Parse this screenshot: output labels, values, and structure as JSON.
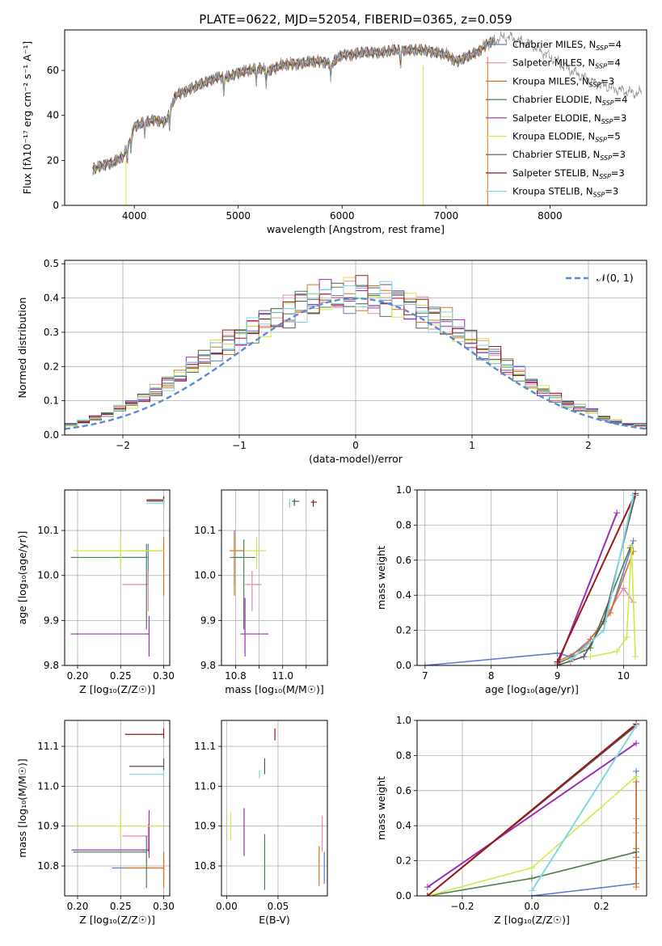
{
  "chart_data": [
    {
      "id": "spectrum",
      "type": "line",
      "title": "PLATE=0622, MJD=52054, FIBERID=0365, z=0.059",
      "xlabel": "wavelength [Angstrom, rest frame]",
      "ylabel": "Flux [fλ10⁻¹⁷ erg cm⁻² s⁻¹ A⁻¹]",
      "xlim": [
        3330,
        8930
      ],
      "ylim": [
        0,
        78
      ],
      "xticks": [
        4000,
        5000,
        6000,
        7000,
        8000
      ],
      "yticks": [
        0,
        20,
        40,
        60
      ],
      "grid": false,
      "legend_position": "right",
      "continuum": {
        "x": [
          3600,
          3700,
          3800,
          3900,
          4000,
          4100,
          4200,
          4300,
          4400,
          4500,
          4600,
          4700,
          4800,
          4900,
          5000,
          5100,
          5200,
          5300,
          5400,
          5500,
          5600,
          5700,
          5800,
          5900,
          6000,
          6100,
          6200,
          6300,
          6400,
          6500,
          6600,
          6700,
          6800,
          6900,
          7000,
          7100,
          7200,
          7300,
          7400,
          7500,
          7600,
          7700,
          7800,
          8000,
          8200,
          8400,
          8600,
          8800
        ],
        "y": [
          16,
          18,
          19,
          22,
          35,
          37,
          38,
          37,
          49,
          51,
          53,
          55,
          57,
          57,
          59,
          60,
          61,
          60,
          62,
          63,
          63,
          64,
          64,
          63,
          67,
          67,
          68,
          68,
          68,
          69,
          69,
          69,
          69,
          68,
          67,
          64,
          66,
          68,
          72,
          74,
          75,
          73,
          72,
          66,
          60,
          55,
          52,
          50
        ]
      },
      "series": [
        {
          "name": "Chabrier MILES, N_SSP=4",
          "color": "#5b7fd1"
        },
        {
          "name": "Salpeter MILES, N_SSP=4",
          "color": "#e889ae"
        },
        {
          "name": "Kroupa MILES, N_SSP=3",
          "color": "#d9731e"
        },
        {
          "name": "Chabrier ELODIE, N_SSP=4",
          "color": "#4f7e4f"
        },
        {
          "name": "Salpeter ELODIE, N_SSP=3",
          "color": "#9a2fb4"
        },
        {
          "name": "Kroupa ELODIE, N_SSP=5",
          "color": "#cfe84a"
        },
        {
          "name": "Chabrier STELIB, N_SSP=3",
          "color": "#555555"
        },
        {
          "name": "Salpeter STELIB, N_SSP=3",
          "color": "#9b1818"
        },
        {
          "name": "Kroupa STELIB, N_SSP=3",
          "color": "#80d8e0"
        }
      ]
    },
    {
      "id": "residuals",
      "type": "line",
      "xlabel": "(data-model)/error",
      "ylabel": "Normed distribution",
      "xlim": [
        -2.5,
        2.5
      ],
      "ylim": [
        0,
        0.51
      ],
      "xticks": [
        -2,
        -1,
        0,
        1,
        2
      ],
      "xticklabels": [
        "−2",
        "−1",
        "0",
        "1",
        "2"
      ],
      "yticks": [
        0.0,
        0.1,
        0.2,
        0.3,
        0.4,
        0.5
      ],
      "grid": true,
      "legend_position": "top-right",
      "normal_label": "𝒩(0, 1)",
      "normal_color": "#5a8bd6",
      "bin_edges_range": [
        -2.6,
        2.6
      ],
      "hist_base": [
        0.02,
        0.03,
        0.04,
        0.05,
        0.06,
        0.08,
        0.09,
        0.11,
        0.13,
        0.15,
        0.17,
        0.2,
        0.22,
        0.25,
        0.27,
        0.29,
        0.31,
        0.33,
        0.35,
        0.36,
        0.38,
        0.39,
        0.4,
        0.4,
        0.41,
        0.41,
        0.4,
        0.4,
        0.39,
        0.38,
        0.36,
        0.34,
        0.33,
        0.3,
        0.28,
        0.25,
        0.23,
        0.2,
        0.18,
        0.15,
        0.13,
        0.11,
        0.09,
        0.08,
        0.07,
        0.05,
        0.04,
        0.03,
        0.03,
        0.02
      ]
    },
    {
      "id": "age-vs-Z",
      "type": "scatter",
      "xlabel": "Z [log₁₀(Z/Z☉)]",
      "ylabel": "age  [log₁₀(age/yr)]",
      "xlim": [
        0.185,
        0.307
      ],
      "ylim": [
        9.8,
        10.19
      ],
      "xticks": [
        0.2,
        0.25,
        0.3
      ],
      "xticklabels": [
        "0.20",
        "0.25",
        "0.30"
      ],
      "yticks": [
        9.8,
        9.9,
        10.0,
        10.1
      ],
      "grid": true,
      "points": [
        {
          "series": 0,
          "x": 0.282,
          "y": 10.04,
          "xerr": [
            0.04,
            0.0
          ],
          "yerr": [
            0.06,
            0.03
          ]
        },
        {
          "series": 1,
          "x": 0.282,
          "y": 9.98,
          "xerr": [
            0.03,
            0.0
          ],
          "yerr": [
            0.06,
            0.03
          ]
        },
        {
          "series": 2,
          "x": 0.3,
          "y": 10.055,
          "xerr": [
            0.045,
            0.0
          ],
          "yerr": [
            0.1,
            0.03
          ]
        },
        {
          "series": 3,
          "x": 0.28,
          "y": 10.04,
          "xerr": [
            0.088,
            0.0
          ],
          "yerr": [
            0.16,
            0.03
          ]
        },
        {
          "series": 4,
          "x": 0.283,
          "y": 9.87,
          "xerr": [
            0.091,
            0.0
          ],
          "yerr": [
            0.05,
            0.04
          ]
        },
        {
          "series": 5,
          "x": 0.25,
          "y": 10.055,
          "xerr": [
            0.055,
            0.05
          ],
          "yerr": [
            0.04,
            0.03
          ]
        },
        {
          "series": 6,
          "x": 0.3,
          "y": 10.165,
          "xerr": [
            0.02,
            0.0
          ],
          "yerr": [
            0.01,
            0.01
          ]
        },
        {
          "series": 7,
          "x": 0.3,
          "y": 10.168,
          "xerr": [
            0.02,
            0.0
          ],
          "yerr": [
            0.008,
            0.008
          ]
        },
        {
          "series": 8,
          "x": 0.3,
          "y": 10.16,
          "xerr": [
            0.02,
            0.0
          ],
          "yerr": [
            0.01,
            0.01
          ]
        }
      ]
    },
    {
      "id": "age-vs-mass",
      "type": "scatter",
      "xlabel": "mass [log₁₀(M/M☉)]",
      "xlim": [
        10.74,
        11.19
      ],
      "ylim": [
        9.8,
        10.19
      ],
      "xticks": [
        10.8,
        10.9,
        11.0,
        11.1
      ],
      "xticklabels": [
        "10.8",
        "",
        "11.0",
        ""
      ],
      "yticks": [
        9.8,
        9.9,
        10.0,
        10.1
      ],
      "grid": true,
      "points": [
        {
          "series": 0,
          "x": 10.795,
          "y": 10.04,
          "xerr": [
            0.02,
            0.03
          ],
          "yerr": [
            0.06,
            0.06
          ]
        },
        {
          "series": 1,
          "x": 10.87,
          "y": 9.98,
          "xerr": [
            0.03,
            0.04
          ],
          "yerr": [
            0.06,
            0.03
          ]
        },
        {
          "series": 2,
          "x": 10.795,
          "y": 10.055,
          "xerr": [
            0.02,
            0.04
          ],
          "yerr": [
            0.1,
            0.04
          ]
        },
        {
          "series": 3,
          "x": 10.835,
          "y": 10.04,
          "xerr": [
            0.05,
            0.05
          ],
          "yerr": [
            0.16,
            0.04
          ]
        },
        {
          "series": 4,
          "x": 10.84,
          "y": 9.87,
          "xerr": [
            0.02,
            0.1
          ],
          "yerr": [
            0.05,
            0.08
          ]
        },
        {
          "series": 5,
          "x": 10.89,
          "y": 10.055,
          "xerr": [
            0.05,
            0.04
          ],
          "yerr": [
            0.04,
            0.03
          ]
        },
        {
          "series": 6,
          "x": 11.05,
          "y": 10.165,
          "xerr": [
            0.01,
            0.02
          ],
          "yerr": [
            0.01,
            0.005
          ]
        },
        {
          "series": 7,
          "x": 11.13,
          "y": 10.163,
          "xerr": [
            0.01,
            0.015
          ],
          "yerr": [
            0.01,
            0.005
          ]
        },
        {
          "series": 8,
          "x": 11.03,
          "y": 10.16,
          "xerr": [
            0.005,
            0.0
          ],
          "yerr": [
            0.01,
            0.01
          ]
        }
      ]
    },
    {
      "id": "massweight-vs-age",
      "type": "line",
      "xlabel": "age  [log₁₀(age/yr)]",
      "ylabel": "mass weight",
      "xlim": [
        6.88,
        10.35
      ],
      "ylim": [
        0,
        1
      ],
      "xticks": [
        7,
        8,
        9,
        10
      ],
      "yticks": [
        0,
        0.2,
        0.4,
        0.6,
        0.8,
        1.0
      ],
      "yticklabels": [
        "0.0",
        "0.2",
        "0.4",
        "0.6",
        "0.8",
        "1.0"
      ],
      "grid": true,
      "series_points": [
        {
          "series": 0,
          "x": [
            7.0,
            9.0,
            9.2,
            9.5,
            9.8,
            10.15
          ],
          "y": [
            0.0,
            0.07,
            0.05,
            0.15,
            0.3,
            0.71
          ]
        },
        {
          "series": 1,
          "x": [
            9.2,
            9.6,
            10.0,
            10.15
          ],
          "y": [
            0.02,
            0.2,
            0.44,
            0.36
          ]
        },
        {
          "series": 2,
          "x": [
            9.0,
            9.4,
            9.8,
            10.15
          ],
          "y": [
            0.02,
            0.1,
            0.3,
            0.65
          ]
        },
        {
          "series": 3,
          "x": [
            9.0,
            9.5,
            10.1
          ],
          "y": [
            0.01,
            0.1,
            0.67
          ]
        },
        {
          "series": 4,
          "x": [
            9.0,
            9.9
          ],
          "y": [
            0.0,
            0.87
          ]
        },
        {
          "series": 5,
          "x": [
            9.5,
            9.9,
            10.05,
            10.12,
            10.18
          ],
          "y": [
            0.05,
            0.08,
            0.16,
            0.68,
            0.05
          ]
        },
        {
          "series": 6,
          "x": [
            9.0,
            9.4,
            9.7,
            10.18
          ],
          "y": [
            0.0,
            0.05,
            0.25,
            0.97
          ]
        },
        {
          "series": 7,
          "x": [
            9.0,
            10.18
          ],
          "y": [
            0.02,
            0.98
          ]
        },
        {
          "series": 8,
          "x": [
            9.2,
            9.7,
            10.15
          ],
          "y": [
            0.03,
            0.2,
            0.97
          ]
        }
      ]
    },
    {
      "id": "mass-vs-Z",
      "type": "scatter",
      "xlabel": "Z [log₁₀(Z/Z☉)]",
      "ylabel": "mass [log₁₀(M/M☉)]",
      "xlim": [
        0.185,
        0.307
      ],
      "ylim": [
        10.725,
        11.165
      ],
      "xticks": [
        0.2,
        0.25,
        0.3
      ],
      "xticklabels": [
        "0.20",
        "0.25",
        "0.30"
      ],
      "yticks": [
        10.8,
        10.9,
        11.0,
        11.1
      ],
      "grid": true,
      "points": [
        {
          "series": 0,
          "x": 0.3,
          "y": 10.795,
          "xerr": [
            0.06,
            0.0
          ],
          "yerr": [
            0.03,
            0.02
          ]
        },
        {
          "series": 1,
          "x": 0.282,
          "y": 10.875,
          "xerr": [
            0.03,
            0.0
          ],
          "yerr": [
            0.04,
            0.03
          ]
        },
        {
          "series": 2,
          "x": 0.3,
          "y": 10.795,
          "xerr": [
            0.045,
            0.0
          ],
          "yerr": [
            0.05,
            0.04
          ]
        },
        {
          "series": 3,
          "x": 0.28,
          "y": 10.835,
          "xerr": [
            0.085,
            0.0
          ],
          "yerr": [
            0.09,
            0.04
          ]
        },
        {
          "series": 4,
          "x": 0.283,
          "y": 10.84,
          "xerr": [
            0.09,
            0.0
          ],
          "yerr": [
            0.02,
            0.1
          ]
        },
        {
          "series": 5,
          "x": 0.25,
          "y": 10.9,
          "xerr": [
            0.055,
            0.05
          ],
          "yerr": [
            0.03,
            0.035
          ]
        },
        {
          "series": 6,
          "x": 0.3,
          "y": 11.05,
          "xerr": [
            0.04,
            0.0
          ],
          "yerr": [
            0.01,
            0.02
          ]
        },
        {
          "series": 7,
          "x": 0.3,
          "y": 11.13,
          "xerr": [
            0.045,
            0.0
          ],
          "yerr": [
            0.01,
            0.015
          ]
        },
        {
          "series": 8,
          "x": 0.3,
          "y": 11.03,
          "xerr": [
            0.04,
            0.0
          ],
          "yerr": [
            0.005,
            0.01
          ]
        }
      ]
    },
    {
      "id": "mass-vs-ebv",
      "type": "scatter",
      "xlabel": "E(B-V)",
      "xlim": [
        -0.005,
        0.098
      ],
      "ylim": [
        10.725,
        11.165
      ],
      "xticks": [
        0.0,
        0.05
      ],
      "xticklabels": [
        "0.00",
        "0.05"
      ],
      "yticks": [
        10.8,
        10.9,
        11.0,
        11.1
      ],
      "grid": true,
      "points": [
        {
          "series": 0,
          "x": 0.095,
          "y": 10.795,
          "xerr": [
            0.0,
            0.0
          ],
          "yerr": [
            0.04,
            0.04
          ]
        },
        {
          "series": 1,
          "x": 0.093,
          "y": 10.875,
          "xerr": [
            0.0,
            0.0
          ],
          "yerr": [
            0.04,
            0.05
          ]
        },
        {
          "series": 2,
          "x": 0.09,
          "y": 10.8,
          "xerr": [
            0.0,
            0.0
          ],
          "yerr": [
            0.05,
            0.05
          ]
        },
        {
          "series": 3,
          "x": 0.037,
          "y": 10.81,
          "xerr": [
            0.0,
            0.0
          ],
          "yerr": [
            0.07,
            0.07
          ]
        },
        {
          "series": 4,
          "x": 0.017,
          "y": 10.885,
          "xerr": [
            0.0,
            0.0
          ],
          "yerr": [
            0.06,
            0.06
          ]
        },
        {
          "series": 5,
          "x": 0.004,
          "y": 10.9,
          "xerr": [
            0.0,
            0.0
          ],
          "yerr": [
            0.035,
            0.035
          ]
        },
        {
          "series": 6,
          "x": 0.037,
          "y": 11.05,
          "xerr": [
            0.0,
            0.0
          ],
          "yerr": [
            0.02,
            0.02
          ]
        },
        {
          "series": 7,
          "x": 0.047,
          "y": 11.13,
          "xerr": [
            0.0,
            0.0
          ],
          "yerr": [
            0.015,
            0.015
          ]
        },
        {
          "series": 8,
          "x": 0.032,
          "y": 11.03,
          "xerr": [
            0.0,
            0.0
          ],
          "yerr": [
            0.01,
            0.01
          ]
        }
      ]
    },
    {
      "id": "massweight-vs-Z",
      "type": "line",
      "xlabel": "Z [log₁₀(Z/Z☉)]",
      "ylabel": "mass weight",
      "xlim": [
        -0.33,
        0.33
      ],
      "ylim": [
        0,
        1
      ],
      "xticks": [
        -0.2,
        0.0,
        0.2
      ],
      "xticklabels": [
        "−0.2",
        "0.0",
        "0.2"
      ],
      "yticks": [
        0,
        0.2,
        0.4,
        0.6,
        0.8,
        1.0
      ],
      "yticklabels": [
        "0.0",
        "0.2",
        "0.4",
        "0.6",
        "0.8",
        "1.0"
      ],
      "grid": true,
      "series_points": [
        {
          "series": 0,
          "x": [
            0.0,
            0.3,
            0.3,
            0.3
          ],
          "y": [
            0.0,
            0.07,
            0.22,
            0.71
          ]
        },
        {
          "series": 1,
          "x": [
            0.3,
            0.3,
            0.3
          ],
          "y": [
            0.16,
            0.36,
            0.44
          ]
        },
        {
          "series": 2,
          "x": [
            0.3,
            0.3,
            0.3
          ],
          "y": [
            0.05,
            0.27,
            0.65
          ]
        },
        {
          "series": 3,
          "x": [
            -0.3,
            0.0,
            0.3
          ],
          "y": [
            0.0,
            0.1,
            0.25
          ]
        },
        {
          "series": 4,
          "x": [
            -0.3,
            0.3
          ],
          "y": [
            0.05,
            0.87
          ]
        },
        {
          "series": 5,
          "x": [
            -0.3,
            0.0,
            0.3
          ],
          "y": [
            0.0,
            0.16,
            0.68
          ]
        },
        {
          "series": 6,
          "x": [
            -0.3,
            0.3
          ],
          "y": [
            0.0,
            0.97
          ]
        },
        {
          "series": 7,
          "x": [
            -0.3,
            0.3
          ],
          "y": [
            0.0,
            0.98
          ]
        },
        {
          "series": 8,
          "x": [
            0.0,
            0.3
          ],
          "y": [
            0.03,
            0.97
          ]
        }
      ]
    }
  ]
}
